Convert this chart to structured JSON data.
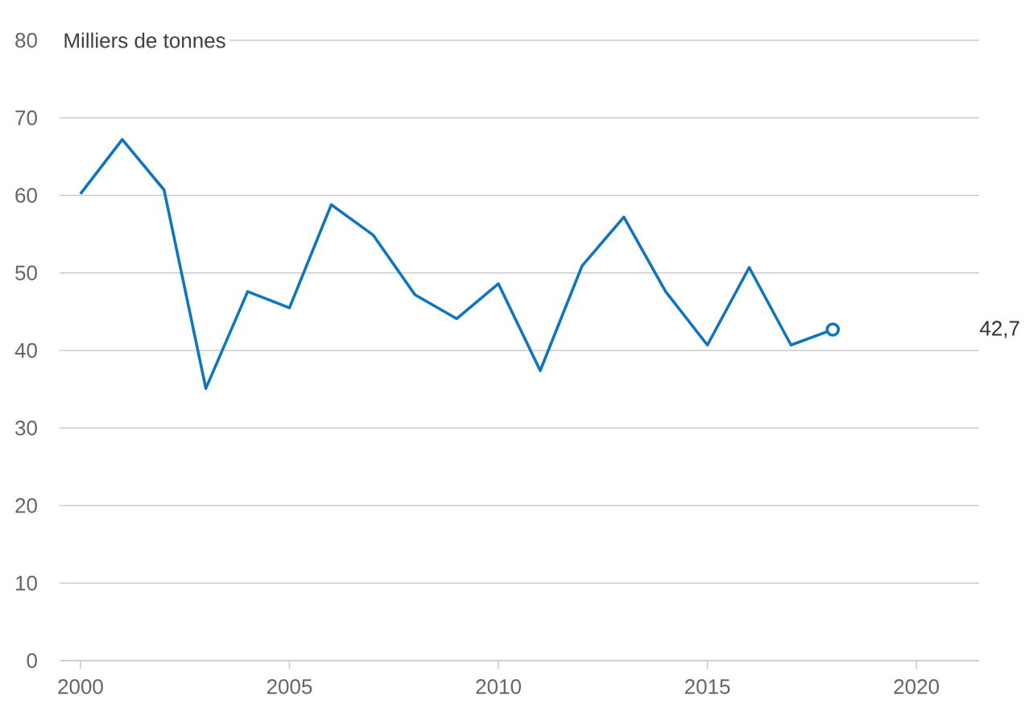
{
  "chart_data": {
    "type": "line",
    "ylabel": "Milliers de tonnes",
    "x": [
      2000,
      2001,
      2002,
      2003,
      2004,
      2005,
      2006,
      2007,
      2008,
      2009,
      2010,
      2011,
      2012,
      2013,
      2014,
      2015,
      2016,
      2017,
      2018
    ],
    "series": [
      {
        "color": "#0f75bc",
        "values": [
          60.2,
          67.2,
          60.7,
          35.1,
          47.6,
          45.5,
          58.8,
          54.9,
          47.2,
          44.1,
          48.6,
          37.4,
          50.9,
          57.2,
          47.6,
          40.7,
          50.7,
          40.7,
          42.7
        ]
      }
    ],
    "xlim": [
      1999.5,
      2021.5
    ],
    "xticks": [
      2000,
      2005,
      2010,
      2015,
      2020
    ],
    "ylim": [
      0,
      80
    ],
    "yticks": [
      0,
      10,
      20,
      30,
      40,
      50,
      60,
      70,
      80
    ],
    "grid": "y",
    "annotations": [
      "42,7"
    ]
  }
}
